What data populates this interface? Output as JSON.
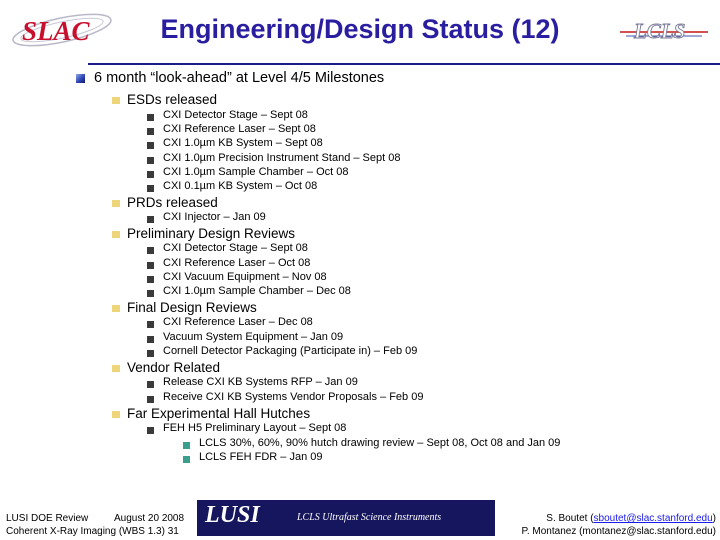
{
  "title": "Engineering/Design Status (12)",
  "colors": {
    "title": "#2a1ea0",
    "bullet_l1": "#efd57a",
    "bullet_l3": "#3a9e8e",
    "banner": "#16165e"
  },
  "logos": {
    "slac": "SLAC",
    "lcls": "LCLS"
  },
  "outline": {
    "heading": "6 month “look-ahead” at Level 4/5 Milestones",
    "sections": [
      {
        "label": "ESDs released",
        "items": [
          "CXI Detector Stage – Sept 08",
          "CXI Reference Laser – Sept 08",
          "CXI 1.0µm KB System – Sept 08",
          "CXI 1.0µm Precision Instrument Stand – Sept 08",
          "CXI 1.0µm Sample Chamber – Oct 08",
          "CXI 0.1µm KB System – Oct 08"
        ]
      },
      {
        "label": "PRDs released",
        "items": [
          "CXI Injector – Jan 09"
        ]
      },
      {
        "label": "Preliminary Design Reviews",
        "items": [
          "CXI Detector Stage – Sept 08",
          "CXI Reference Laser – Oct 08",
          "CXI Vacuum Equipment – Nov 08",
          "CXI 1.0µm Sample Chamber – Dec 08"
        ]
      },
      {
        "label": "Final Design Reviews",
        "items": [
          "CXI Reference Laser – Dec 08",
          "Vacuum System Equipment – Jan 09",
          "Cornell Detector Packaging (Participate in) – Feb 09"
        ]
      },
      {
        "label": "Vendor Related",
        "items": [
          "Release CXI KB Systems RFP – Jan 09",
          "Receive CXI KB Systems Vendor Proposals – Feb 09"
        ]
      },
      {
        "label": "Far Experimental Hall Hutches",
        "items": [
          "FEH H5 Preliminary Layout – Sept 08"
        ],
        "subitems": [
          "LCLS 30%, 60%, 90% hutch drawing review – Sept 08, Oct 08 and Jan 09",
          "LCLS FEH FDR – Jan 09"
        ]
      }
    ]
  },
  "footer": {
    "review": "LUSI DOE Review",
    "date": "August 20 2008",
    "wbs": "Coherent X-Ray Imaging (WBS 1.3)",
    "page": "31",
    "banner_word": "LUSI",
    "banner_tagline": "LCLS Ultrafast Science Instruments",
    "contact1_name": "S. Boutet (",
    "contact1_email": "sboutet@slac.stanford.edu",
    "contact1_close": ")",
    "contact2": "P. Montanez (montanez@slac.stanford.edu)"
  }
}
